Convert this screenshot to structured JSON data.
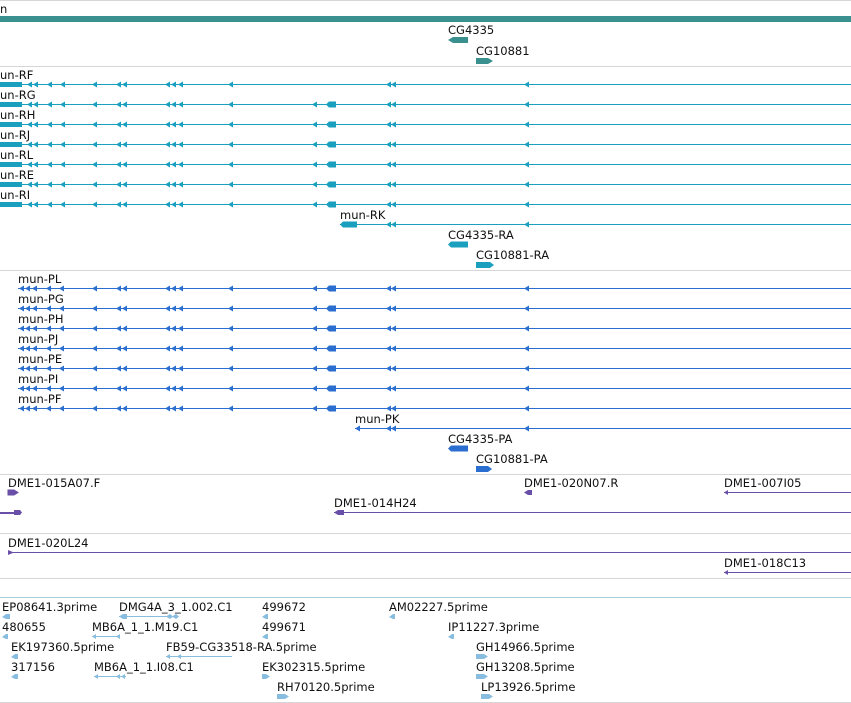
{
  "gene": {
    "partial_label": "n",
    "color": "#3a8f8f"
  },
  "gene_features": [
    {
      "name": "CG4335",
      "strand": "minus"
    },
    {
      "name": "CG10881",
      "strand": "plus"
    }
  ],
  "transcripts": {
    "color": "#1a9fbf",
    "items": [
      {
        "label": "un-RF"
      },
      {
        "label": "un-RG"
      },
      {
        "label": "un-RH"
      },
      {
        "label": "un-RJ"
      },
      {
        "label": "un-RL"
      },
      {
        "label": "un-RE"
      },
      {
        "label": "un-RI"
      },
      {
        "label": "mun-RK"
      },
      {
        "label": "CG4335-RA"
      },
      {
        "label": "CG10881-RA"
      }
    ]
  },
  "proteins": {
    "color": "#2a6fcf",
    "items": [
      {
        "label": "mun-PL"
      },
      {
        "label": "mun-PG"
      },
      {
        "label": "mun-PH"
      },
      {
        "label": "mun-PJ"
      },
      {
        "label": "mun-PE"
      },
      {
        "label": "mun-PI"
      },
      {
        "label": "mun-PF"
      },
      {
        "label": "mun-PK"
      },
      {
        "label": "CG4335-PA"
      },
      {
        "label": "CG10881-PA"
      }
    ]
  },
  "clones": {
    "color": "#6a4fa8",
    "items": [
      {
        "label": "DME1-015A07.F"
      },
      {
        "label": "DME1-020N07.R"
      },
      {
        "label": "DME1-007I05"
      },
      {
        "label": "DME1-014H24"
      },
      {
        "label": "DME1-020L24"
      },
      {
        "label": "DME1-018C13"
      }
    ]
  },
  "ests": {
    "color": "#88bde0",
    "items": [
      {
        "label": "EP08641.3prime"
      },
      {
        "label": "DMG4A_3_1.002.C1"
      },
      {
        "label": "499672"
      },
      {
        "label": "AM02227.5prime"
      },
      {
        "label": "480655"
      },
      {
        "label": "MB6A_1_1.M19.C1"
      },
      {
        "label": "499671"
      },
      {
        "label": "IP11227.3prime"
      },
      {
        "label": "EK197360.5prime"
      },
      {
        "label": "FB59-CG33518-RA.5prime"
      },
      {
        "label": "GH14966.5prime"
      },
      {
        "label": "317156"
      },
      {
        "label": "MB6A_1_1.I08.C1"
      },
      {
        "label": "EK302315.5prime"
      },
      {
        "label": "GH13208.5prime"
      },
      {
        "label": "RH70120.5prime"
      },
      {
        "label": "LP13926.5prime"
      }
    ]
  }
}
